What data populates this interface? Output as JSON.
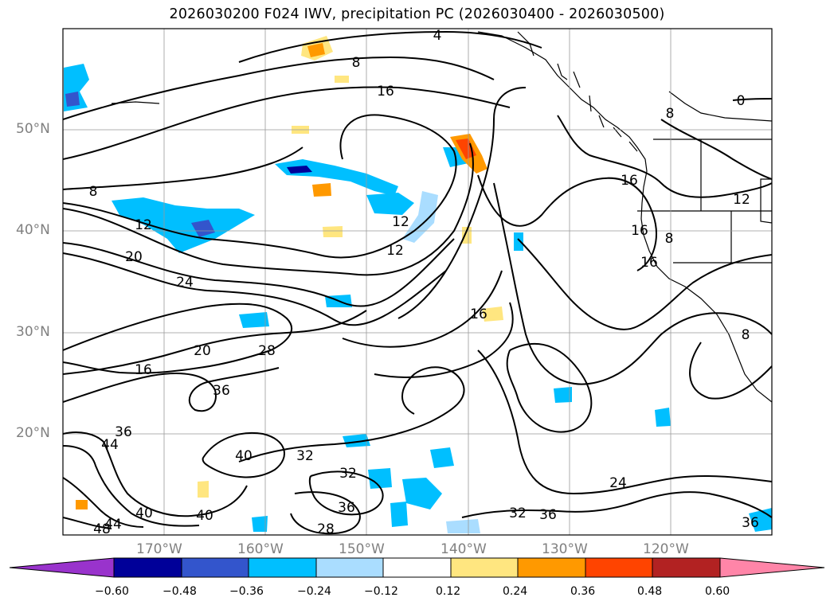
{
  "title": "2026030200 F024 IWV, precipitation PC (2026030400 - 2026030500)",
  "latitude_labels": [
    "50°N",
    "40°N",
    "30°N",
    "20°N"
  ],
  "longitude_labels": [
    "170°W",
    "160°W",
    "150°W",
    "140°W",
    "130°W",
    "120°W"
  ],
  "contour_labels": [
    "4",
    "8",
    "16",
    "8",
    "0",
    "16",
    "12",
    "12",
    "12",
    "8",
    "20",
    "24",
    "16",
    "8",
    "16",
    "12",
    "20",
    "28",
    "16",
    "16",
    "36",
    "36",
    "44",
    "40",
    "32",
    "32",
    "36",
    "28",
    "40",
    "44",
    "48",
    "24",
    "32",
    "36",
    "36",
    "8"
  ],
  "colorbar": {
    "tick_labels": [
      "−0.60",
      "−0.48",
      "−0.36",
      "−0.24",
      "−0.12",
      "0.12",
      "0.24",
      "0.36",
      "0.48",
      "0.60"
    ],
    "colors": {
      "below": "#9933cc",
      "bins": [
        "#000099",
        "#3355cc",
        "#00bfff",
        "#aaddff",
        "#ffffff",
        "#ffe680",
        "#ff9900",
        "#ff4400",
        "#b22222"
      ],
      "above": "#ff85a8"
    }
  }
}
